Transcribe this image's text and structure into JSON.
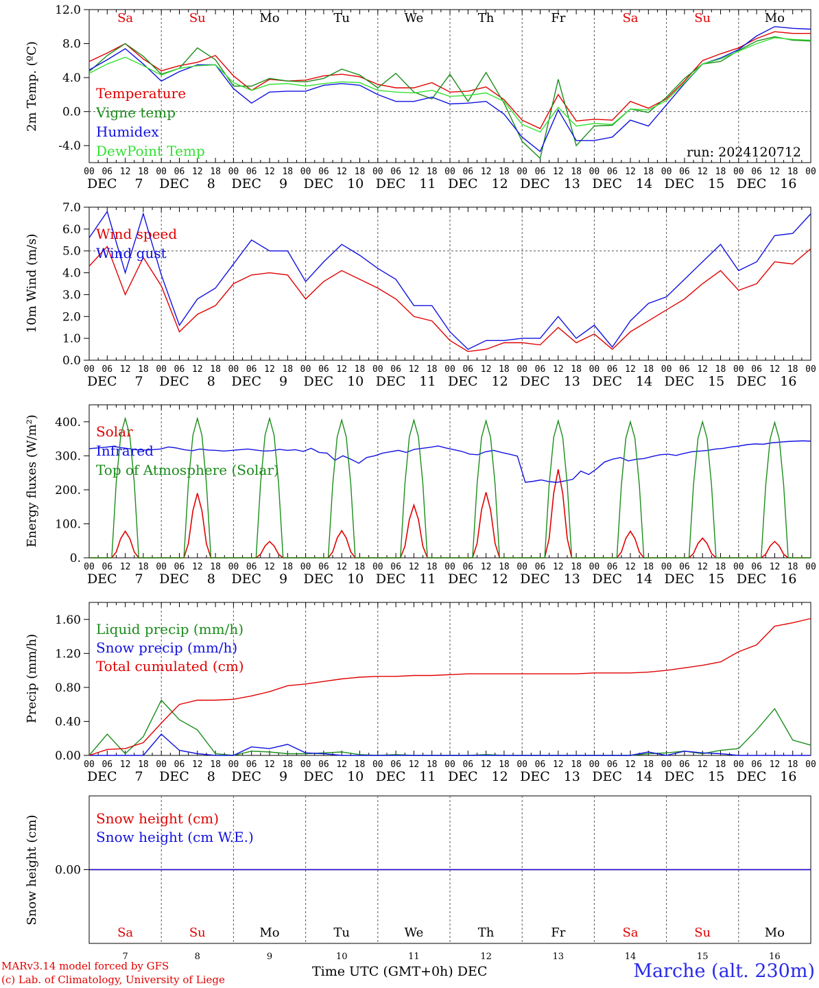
{
  "x_axis": {
    "days": [
      "7",
      "8",
      "9",
      "10",
      "11",
      "12",
      "13",
      "14",
      "15",
      "16"
    ],
    "month": "DEC",
    "weekdays": [
      "Sa",
      "Su",
      "Mo",
      "Tu",
      "We",
      "Th",
      "Fr",
      "Sa",
      "Su",
      "Mo"
    ],
    "weekend_flags": [
      true,
      true,
      false,
      false,
      false,
      false,
      false,
      true,
      true,
      false
    ],
    "hour_ticks": [
      "00",
      "06",
      "12",
      "18"
    ],
    "final_tick": "00",
    "title": "Time UTC (GMT+0h)",
    "title_suffix": "DEC"
  },
  "footer": {
    "model_line": "MARv3.14 model forced by GFS",
    "copyright_line": "(c) Lab. of Climatology, University of Liege",
    "station": "Marche (alt. 230m)"
  },
  "colors": {
    "red": "#e00000",
    "green": "#1a8c1a",
    "blue": "#1010e0",
    "lightgreen": "#33e033",
    "weekend": "#e00000",
    "grid": "#555555"
  },
  "chart_data": [
    {
      "type": "line",
      "ylabel": "2m Temp. (ºC)",
      "ylim": [
        -6.0,
        12.0
      ],
      "yticks": [
        "-4.0",
        "0.0",
        "4.0",
        "8.0",
        "12.0"
      ],
      "ytick_values": [
        -4,
        0,
        4,
        8,
        12
      ],
      "zero_line": 0,
      "annotation": "run: 2024120712",
      "x_hours": [
        0,
        6,
        12,
        18,
        24,
        30,
        36,
        42,
        48,
        54,
        60,
        66,
        72,
        78,
        84,
        90,
        96,
        102,
        108,
        114,
        120,
        126,
        132,
        138,
        144,
        150,
        156,
        162,
        168,
        174,
        180,
        186,
        192,
        198,
        204,
        210,
        216,
        222,
        228,
        234,
        240
      ],
      "series": [
        {
          "name": "Temperature",
          "color": "red",
          "values": [
            5.9,
            6.9,
            8.0,
            6.2,
            4.8,
            5.4,
            5.8,
            6.6,
            4.2,
            2.5,
            3.8,
            3.6,
            3.7,
            4.2,
            4.4,
            4.1,
            3.2,
            2.8,
            2.8,
            3.4,
            2.3,
            2.4,
            2.9,
            1.4,
            -1.0,
            -2.0,
            2.0,
            -1.1,
            -0.9,
            -1.0,
            1.2,
            0.4,
            1.5,
            3.6,
            6.0,
            6.8,
            7.5,
            8.6,
            9.4,
            9.2,
            9.2
          ]
        },
        {
          "name": "Vigne temp",
          "color": "green",
          "values": [
            4.7,
            6.6,
            8.0,
            6.5,
            4.4,
            5.1,
            7.5,
            6.1,
            3.0,
            3.0,
            3.9,
            3.6,
            3.5,
            3.9,
            5.0,
            4.3,
            2.8,
            4.5,
            2.3,
            1.5,
            4.4,
            1.2,
            4.6,
            1.0,
            -3.5,
            -5.5,
            3.8,
            -4.0,
            -1.7,
            -1.6,
            0.3,
            -0.1,
            1.7,
            3.9,
            5.6,
            5.9,
            7.2,
            8.3,
            8.8,
            8.4,
            8.3
          ]
        },
        {
          "name": "Humidex",
          "color": "blue",
          "values": [
            4.9,
            6.1,
            7.4,
            5.6,
            3.6,
            4.7,
            5.5,
            5.5,
            2.7,
            1.0,
            2.3,
            2.4,
            2.4,
            3.1,
            3.3,
            3.1,
            2.0,
            1.2,
            1.2,
            1.7,
            0.9,
            1.0,
            1.2,
            -0.3,
            -3.0,
            -4.7,
            0.2,
            -3.4,
            -3.4,
            -3.0,
            -1.0,
            -1.7,
            0.8,
            3.3,
            5.6,
            6.3,
            7.3,
            8.9,
            10.0,
            9.8,
            9.7
          ]
        },
        {
          "name": "DewPoint Temp",
          "color": "lightgreen",
          "values": [
            4.5,
            5.6,
            6.4,
            5.4,
            4.3,
            5.1,
            5.4,
            5.5,
            3.4,
            2.5,
            3.2,
            3.3,
            3.0,
            3.3,
            3.5,
            3.4,
            2.5,
            2.3,
            2.2,
            2.5,
            1.8,
            1.9,
            2.2,
            1.2,
            -1.5,
            -2.4,
            0.5,
            -1.7,
            -1.4,
            -1.5,
            0.3,
            0.2,
            1.3,
            3.4,
            5.6,
            6.2,
            7.1,
            8.0,
            8.7,
            8.5,
            8.4
          ]
        }
      ]
    },
    {
      "type": "line",
      "ylabel": "10m Wind (m/s)",
      "ylim": [
        0.0,
        7.0
      ],
      "yticks": [
        "0.0",
        "1.0",
        "2.0",
        "3.0",
        "4.0",
        "5.0",
        "6.0",
        "7.0"
      ],
      "ytick_values": [
        0,
        1,
        2,
        3,
        4,
        5,
        6,
        7
      ],
      "zero_line": 5,
      "x_hours": [
        0,
        6,
        12,
        18,
        24,
        30,
        36,
        42,
        48,
        54,
        60,
        66,
        72,
        78,
        84,
        90,
        96,
        102,
        108,
        114,
        120,
        126,
        132,
        138,
        144,
        150,
        156,
        162,
        168,
        174,
        180,
        186,
        192,
        198,
        204,
        210,
        216,
        222,
        228,
        234,
        240
      ],
      "series": [
        {
          "name": "Wind speed",
          "color": "red",
          "values": [
            4.3,
            5.2,
            3.0,
            4.7,
            3.4,
            1.3,
            2.1,
            2.5,
            3.5,
            3.9,
            4.0,
            3.9,
            2.8,
            3.6,
            4.1,
            3.7,
            3.3,
            2.8,
            2.0,
            1.8,
            0.9,
            0.4,
            0.5,
            0.8,
            0.8,
            0.7,
            1.5,
            0.8,
            1.2,
            0.5,
            1.3,
            1.8,
            2.3,
            2.8,
            3.5,
            4.1,
            3.2,
            3.5,
            4.5,
            4.4,
            5.1
          ]
        },
        {
          "name": "Wind gust",
          "color": "blue",
          "values": [
            5.6,
            6.8,
            4.0,
            6.7,
            3.9,
            1.6,
            2.8,
            3.3,
            4.4,
            5.5,
            5.0,
            5.0,
            3.6,
            4.5,
            5.3,
            4.8,
            4.2,
            3.7,
            2.5,
            2.5,
            1.3,
            0.5,
            0.9,
            0.9,
            1.0,
            1.0,
            2.0,
            1.0,
            1.6,
            0.6,
            1.8,
            2.6,
            2.9,
            3.7,
            4.5,
            5.3,
            4.1,
            4.5,
            5.7,
            5.8,
            6.7
          ]
        }
      ]
    },
    {
      "type": "line",
      "ylabel": "Energy fluxes (W/m²)",
      "ylim": [
        0,
        450
      ],
      "yticks": [
        "0.",
        "100.",
        "200.",
        "300.",
        "400."
      ],
      "ytick_values": [
        0,
        100,
        200,
        300,
        400
      ],
      "x_hours_step": 1.5,
      "series": [
        {
          "name": "Solar",
          "color": "red",
          "day_peaks": [
            78,
            190,
            48,
            80,
            155,
            193,
            260,
            78,
            58,
            48
          ]
        },
        {
          "name": "Infrared",
          "color": "blue",
          "values": [
            321,
            323,
            325,
            328,
            324,
            321,
            318,
            317,
            318,
            320,
            326,
            323,
            318,
            315,
            320,
            317,
            316,
            314,
            316,
            318,
            320,
            317,
            314,
            315,
            319,
            316,
            318,
            313,
            322,
            310,
            308,
            287,
            300,
            290,
            278,
            295,
            300,
            308,
            312,
            316,
            310,
            319,
            322,
            325,
            329,
            323,
            318,
            313,
            305,
            303,
            312,
            316,
            310,
            305,
            299,
            222,
            225,
            229,
            224,
            222,
            226,
            231,
            255,
            245,
            262,
            282,
            290,
            295,
            285,
            290,
            292,
            298,
            303,
            305,
            301,
            307,
            312,
            314,
            316,
            320,
            322,
            326,
            329,
            333,
            335,
            334,
            338,
            340,
            342,
            343,
            344,
            343
          ]
        },
        {
          "name": "Top of Atmosphere (Solar)",
          "color": "green",
          "day_peaks": [
            410,
            410,
            410,
            405,
            405,
            403,
            403,
            400,
            400,
            398
          ]
        }
      ]
    },
    {
      "type": "line",
      "ylabel": "Precip (mm/h)",
      "ylim": [
        0.0,
        1.8
      ],
      "yticks": [
        "0.00",
        "0.40",
        "0.80",
        "1.20",
        "1.60"
      ],
      "ytick_values": [
        0,
        0.4,
        0.8,
        1.2,
        1.6
      ],
      "x_hours": [
        0,
        6,
        12,
        18,
        24,
        30,
        36,
        42,
        48,
        54,
        60,
        66,
        72,
        78,
        84,
        90,
        96,
        102,
        108,
        114,
        120,
        126,
        132,
        138,
        144,
        150,
        156,
        162,
        168,
        174,
        180,
        186,
        192,
        198,
        204,
        210,
        216,
        222,
        228,
        234,
        240
      ],
      "series": [
        {
          "name": "Liquid precip (mm/h)",
          "color": "green",
          "values": [
            0.0,
            0.25,
            0.02,
            0.22,
            0.65,
            0.42,
            0.3,
            0.02,
            0.0,
            0.05,
            0.04,
            0.02,
            0.02,
            0.03,
            0.04,
            0.01,
            0.0,
            0.01,
            0.0,
            0.0,
            0.0,
            0.0,
            0.01,
            0.0,
            0.0,
            0.0,
            0.0,
            0.0,
            0.0,
            0.0,
            0.0,
            0.02,
            0.03,
            0.05,
            0.02,
            0.06,
            0.08,
            0.3,
            0.55,
            0.18,
            0.12
          ]
        },
        {
          "name": "Snow precip (mm/h)",
          "color": "blue",
          "values": [
            0.0,
            0.0,
            0.0,
            0.0,
            0.25,
            0.06,
            0.02,
            0.0,
            0.0,
            0.1,
            0.08,
            0.13,
            0.03,
            0.02,
            0.0,
            0.0,
            0.0,
            0.0,
            0.0,
            0.0,
            0.0,
            0.0,
            0.0,
            0.0,
            0.0,
            0.0,
            0.0,
            0.0,
            0.0,
            0.0,
            0.0,
            0.04,
            0.0,
            0.05,
            0.03,
            0.02,
            0.0,
            0.0,
            0.0,
            0.0,
            0.0
          ]
        },
        {
          "name": "Total cumulated (cm)",
          "color": "red",
          "values": [
            0.0,
            0.07,
            0.08,
            0.15,
            0.38,
            0.6,
            0.65,
            0.65,
            0.66,
            0.7,
            0.75,
            0.82,
            0.84,
            0.87,
            0.9,
            0.92,
            0.93,
            0.93,
            0.94,
            0.94,
            0.95,
            0.96,
            0.96,
            0.96,
            0.96,
            0.96,
            0.96,
            0.96,
            0.97,
            0.97,
            0.97,
            0.98,
            1.0,
            1.03,
            1.06,
            1.1,
            1.22,
            1.3,
            1.52,
            1.56,
            1.61
          ]
        }
      ]
    },
    {
      "type": "line",
      "ylabel": "Snow height (cm)",
      "ylim": [
        -1.0,
        1.0
      ],
      "yticks": [
        "0.00"
      ],
      "ytick_values": [
        0
      ],
      "series": [
        {
          "name": "Snow height (cm)",
          "color": "red",
          "values": [
            0,
            0
          ]
        },
        {
          "name": "Snow height (cm W.E.)",
          "color": "blue",
          "values": [
            0,
            0
          ]
        }
      ]
    }
  ]
}
